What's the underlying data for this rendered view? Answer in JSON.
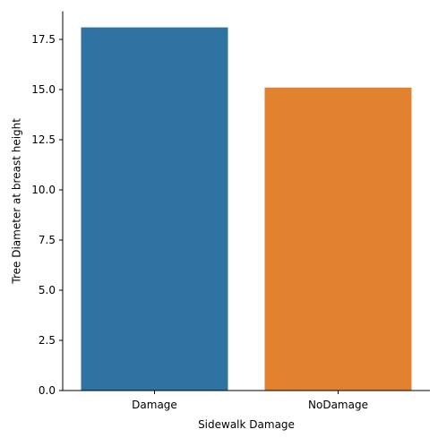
{
  "chart_data": {
    "type": "bar",
    "title": "",
    "xlabel": "Sidewalk Damage",
    "ylabel": "Tree Diameter at breast height",
    "categories": [
      "Damage",
      "NoDamage"
    ],
    "values": [
      18.1,
      15.1
    ],
    "colors": [
      "#2f73a2",
      "#e2822e"
    ],
    "ylim": [
      0,
      18.9
    ],
    "yticks": [
      0.0,
      2.5,
      5.0,
      7.5,
      10.0,
      12.5,
      15.0,
      17.5
    ],
    "ytick_labels": [
      "0.0",
      "2.5",
      "5.0",
      "7.5",
      "10.0",
      "12.5",
      "15.0",
      "17.5"
    ],
    "grid": false,
    "legend": "none",
    "spines": "left-bottom"
  }
}
